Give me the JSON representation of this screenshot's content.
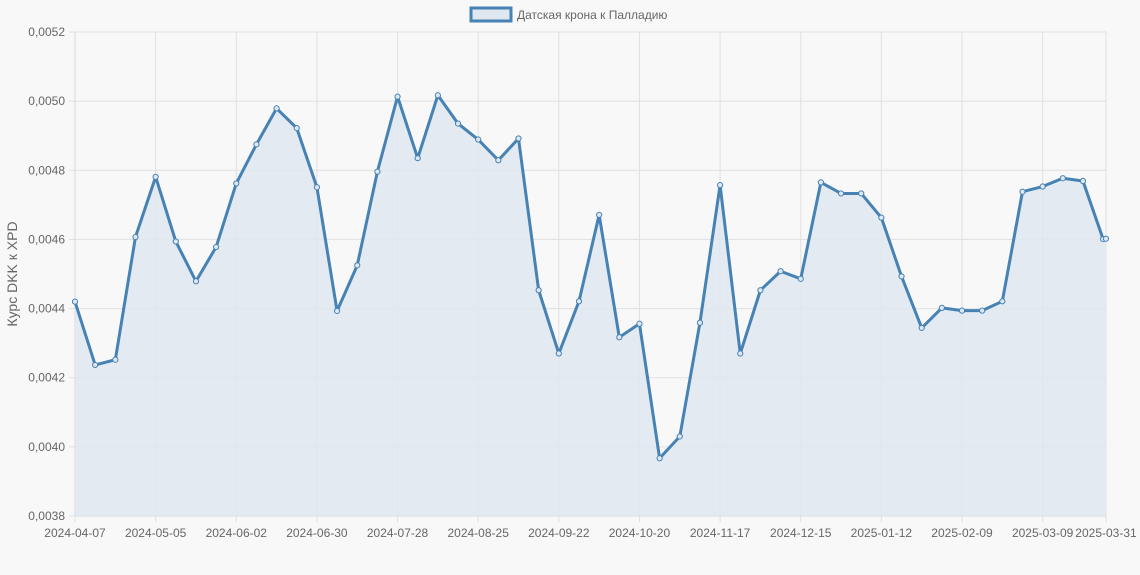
{
  "chart_data": {
    "type": "area",
    "ylabel": "Курс DKK к XPD",
    "ylim": [
      0.0038,
      0.0052
    ],
    "ytick_values": [
      0.0038,
      0.004,
      0.0042,
      0.0044,
      0.0046,
      0.0048,
      0.005,
      0.0052
    ],
    "yticks": [
      "0,0038",
      "0,0040",
      "0,0042",
      "0,0044",
      "0,0046",
      "0,0048",
      "0,0050",
      "0,0052"
    ],
    "xticks": [
      "2024-04-07",
      "2024-05-05",
      "2024-06-02",
      "2024-06-30",
      "2024-07-28",
      "2024-08-25",
      "2024-09-22",
      "2024-10-20",
      "2024-11-17",
      "2024-12-15",
      "2025-01-12",
      "2025-02-09",
      "2025-03-09",
      "2025-03-31"
    ],
    "grid": true,
    "legend_position": "top",
    "colors": {
      "line": "#4682b4",
      "fill": "#dfe8f0",
      "grid": "#e0e0e0"
    },
    "series": [
      {
        "name": "Датская крона к Палладию",
        "x": [
          "2024-04-07",
          "2024-04-14",
          "2024-04-21",
          "2024-04-28",
          "2024-05-05",
          "2024-05-12",
          "2024-05-19",
          "2024-05-26",
          "2024-06-02",
          "2024-06-09",
          "2024-06-16",
          "2024-06-23",
          "2024-06-30",
          "2024-07-07",
          "2024-07-14",
          "2024-07-21",
          "2024-07-28",
          "2024-08-04",
          "2024-08-11",
          "2024-08-18",
          "2024-08-25",
          "2024-09-01",
          "2024-09-08",
          "2024-09-15",
          "2024-09-22",
          "2024-09-29",
          "2024-10-06",
          "2024-10-13",
          "2024-10-20",
          "2024-10-27",
          "2024-11-03",
          "2024-11-10",
          "2024-11-17",
          "2024-11-24",
          "2024-12-01",
          "2024-12-08",
          "2024-12-15",
          "2024-12-22",
          "2024-12-29",
          "2025-01-05",
          "2025-01-12",
          "2025-01-19",
          "2025-01-26",
          "2025-02-02",
          "2025-02-09",
          "2025-02-16",
          "2025-02-23",
          "2025-03-02",
          "2025-03-09",
          "2025-03-16",
          "2025-03-23",
          "2025-03-30",
          "2025-03-31"
        ],
        "values": [
          0.00442,
          0.004237,
          0.004252,
          0.004607,
          0.004781,
          0.004594,
          0.004479,
          0.004578,
          0.004762,
          0.004875,
          0.004979,
          0.004922,
          0.004751,
          0.004393,
          0.004525,
          0.004796,
          0.005013,
          0.004835,
          0.005017,
          0.004935,
          0.004889,
          0.004829,
          0.004892,
          0.004453,
          0.00427,
          0.004421,
          0.004671,
          0.004317,
          0.004356,
          0.003967,
          0.00403,
          0.004359,
          0.004757,
          0.00427,
          0.004453,
          0.004508,
          0.004486,
          0.004765,
          0.004733,
          0.004733,
          0.004663,
          0.004493,
          0.004344,
          0.004402,
          0.004394,
          0.004394,
          0.004421,
          0.004738,
          0.004753,
          0.004777,
          0.004769,
          0.004601,
          0.004602
        ]
      }
    ]
  }
}
